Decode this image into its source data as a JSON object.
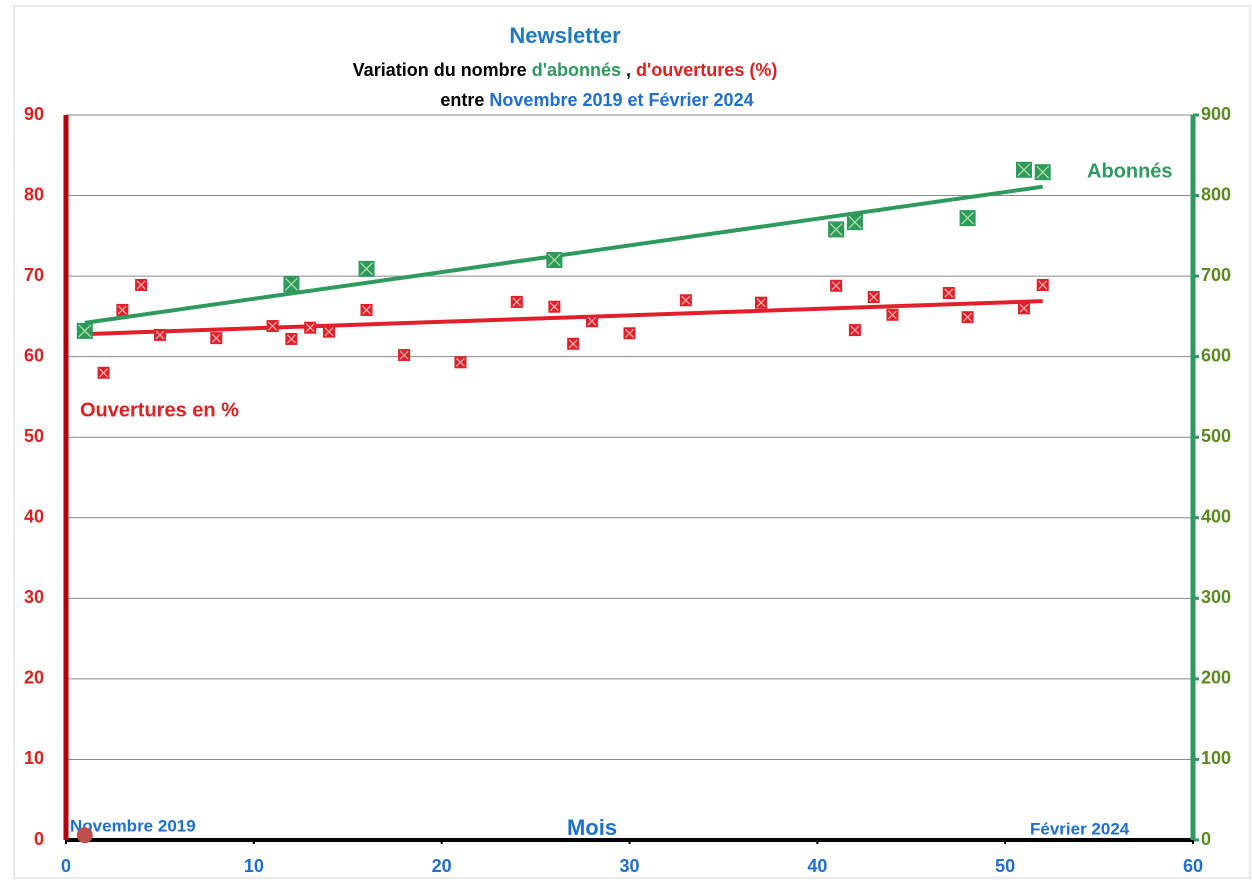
{
  "chart_data": {
    "type": "scatter",
    "title": "Newsletter",
    "subtitle": [
      [
        {
          "text": "Variation du nombre ",
          "color": "#000000"
        },
        {
          "text": "d'abonnés",
          "color": "#2e9a5e"
        },
        {
          "text": " , ",
          "color": "#000000"
        },
        {
          "text": "d'ouvertures (%)",
          "color": "#e02020"
        }
      ],
      [
        {
          "text": "entre ",
          "color": "#000000"
        },
        {
          "text": "Novembre 2019 et Février 2024",
          "color": "#1f6fd0"
        }
      ]
    ],
    "x_label": "Mois",
    "annotations": [
      "Ouvertures en %",
      "Abonnés",
      "Novembre 2019",
      "Février 2024"
    ],
    "xlim": [
      0,
      60
    ],
    "xticks": [
      0,
      10,
      20,
      30,
      40,
      50,
      60
    ],
    "ylim": [
      0,
      90
    ],
    "yticks": [
      0,
      10,
      20,
      30,
      40,
      50,
      60,
      70,
      80,
      90
    ],
    "y2lim": [
      0,
      900
    ],
    "y2ticks": [
      0,
      100,
      200,
      300,
      400,
      500,
      600,
      700,
      800,
      900
    ],
    "grid": true,
    "series": [
      {
        "color": "#e0202a",
        "axis": "y",
        "x": [
          1,
          2,
          3,
          4,
          5,
          8,
          11,
          12,
          13,
          14,
          16,
          18,
          21,
          24,
          26,
          27,
          28,
          30,
          33,
          37,
          41,
          42,
          43,
          44,
          47,
          48,
          51,
          52
        ],
        "values": [
          63.2,
          58,
          65.8,
          68.9,
          62.7,
          62.3,
          63.8,
          62.2,
          63.6,
          63.1,
          65.8,
          60.2,
          59.3,
          66.8,
          66.2,
          61.6,
          64.4,
          62.9,
          67,
          66.7,
          68.8,
          63.3,
          67.4,
          65.2,
          67.9,
          64.9,
          66,
          68.9
        ],
        "trend": {
          "x": [
            1,
            52
          ],
          "values": [
            62.8,
            66.9
          ]
        }
      },
      {
        "color": "#2e9a5e",
        "axis": "y2",
        "x": [
          1,
          12,
          16,
          26,
          41,
          42,
          48,
          51,
          52
        ],
        "values": [
          632,
          690,
          709,
          720,
          758,
          767,
          772,
          832,
          829
        ],
        "trend": {
          "x": [
            1,
            52
          ],
          "values": [
            642,
            811
          ]
        }
      },
      {
        "color": "#c0504d",
        "axis": "y",
        "marker": "circle",
        "x": [
          1
        ],
        "values": [
          0.6
        ]
      }
    ]
  }
}
